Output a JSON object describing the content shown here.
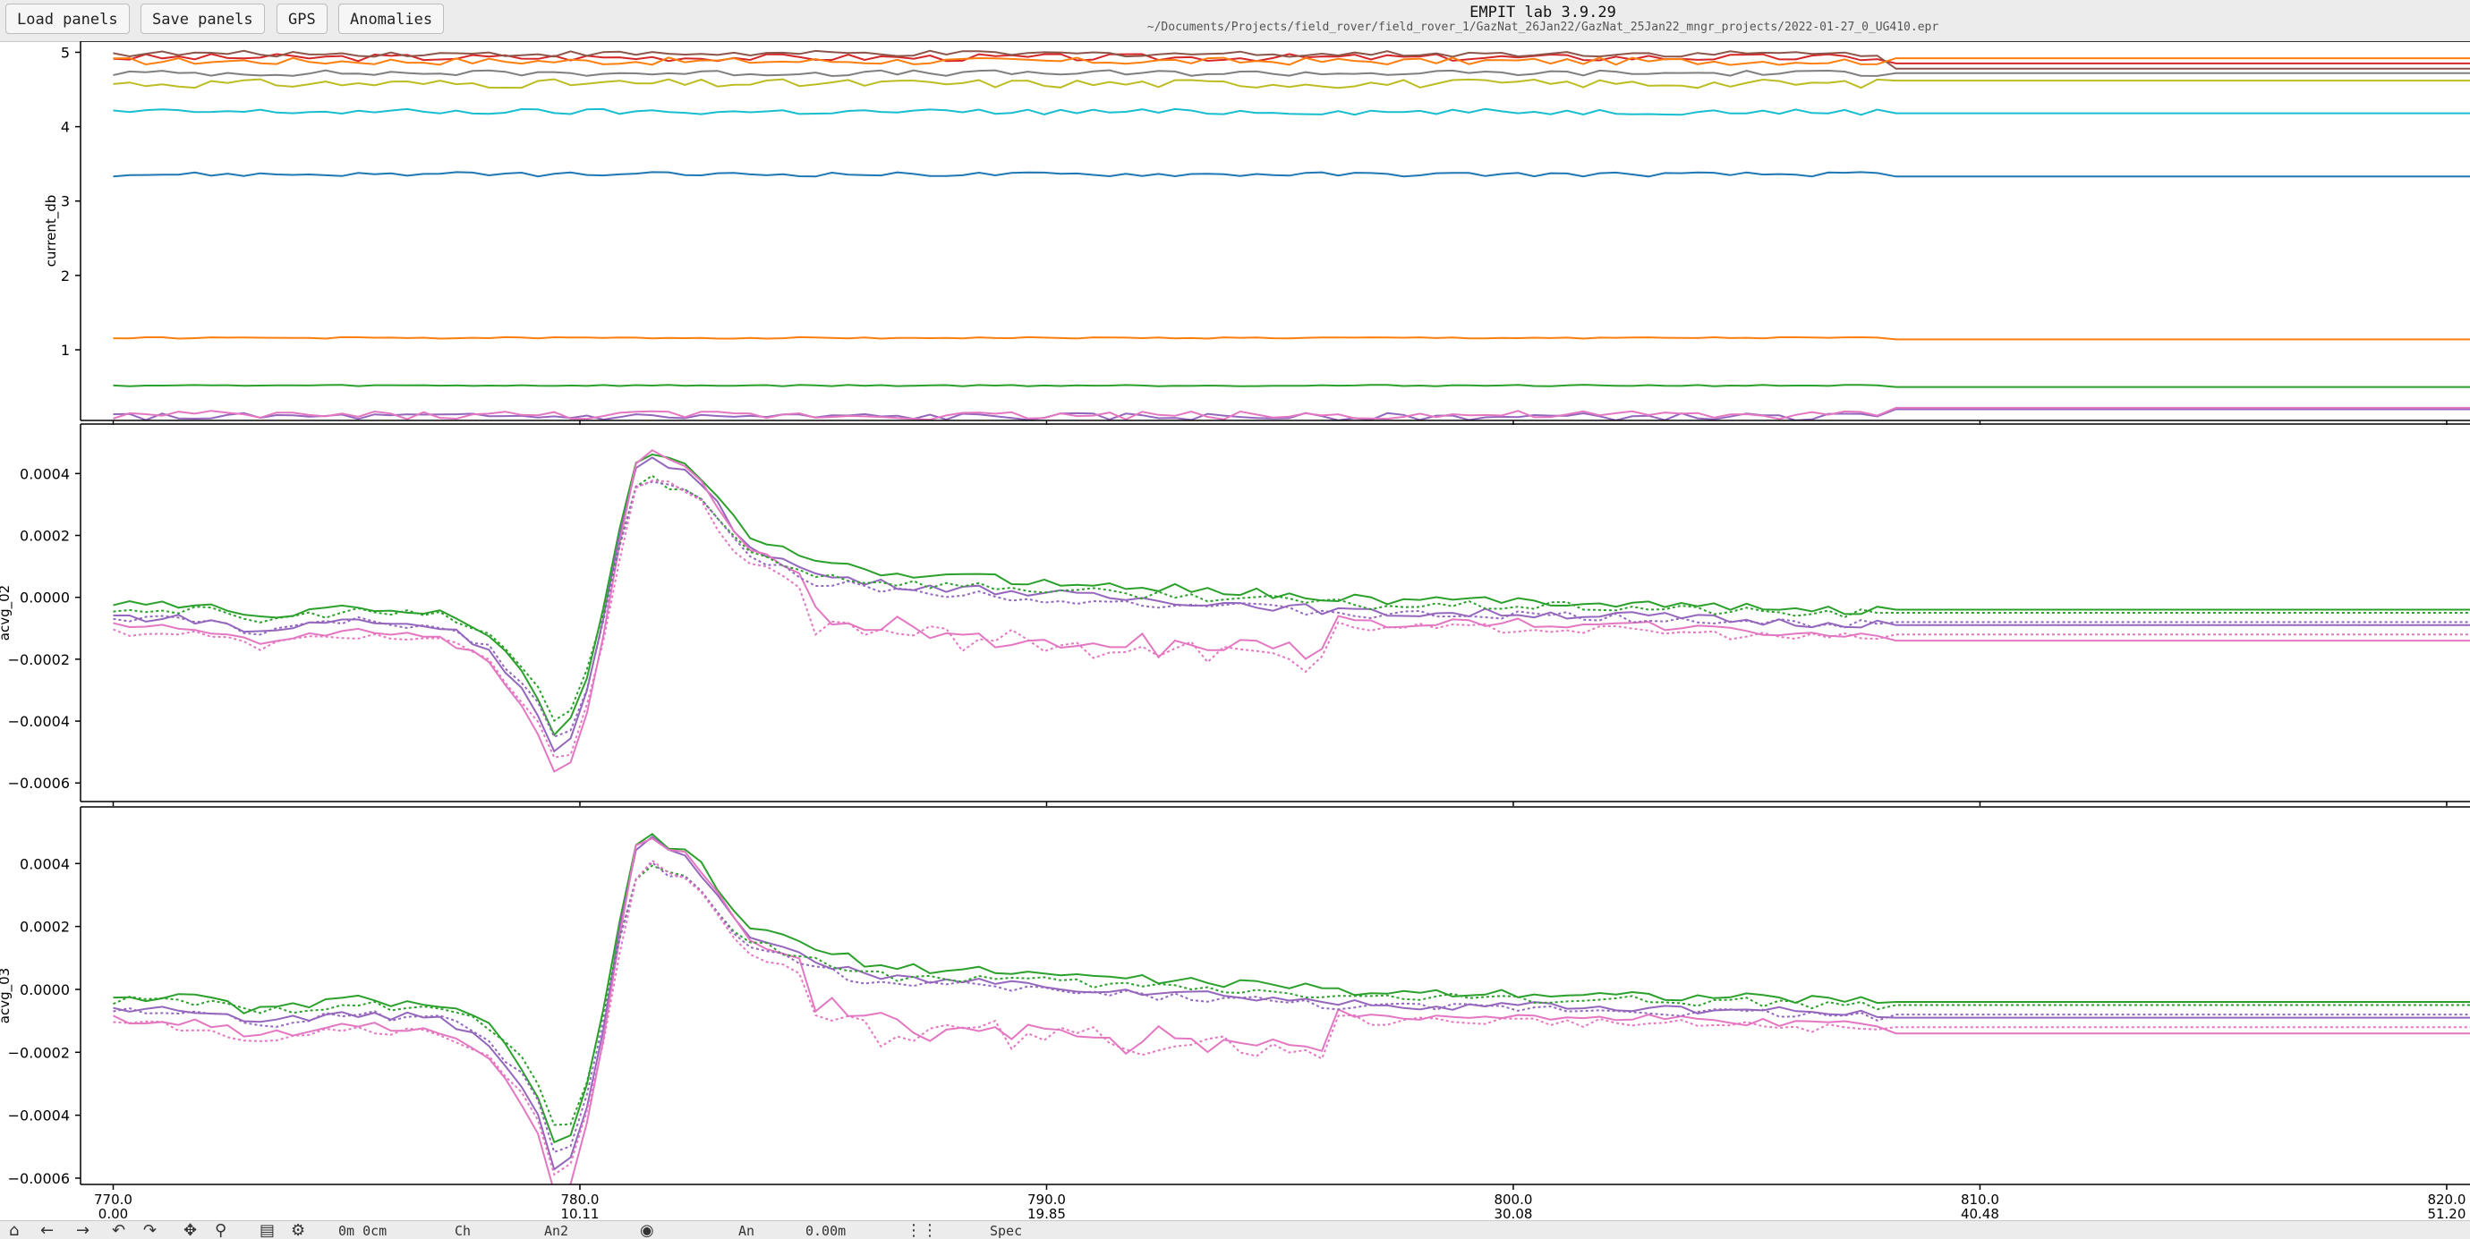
{
  "window": {
    "title": "EMPIT lab 3.9.29",
    "path": "~/Documents/Projects/field_rover/field_rover_1/GazNat_26Jan22/GazNat_25Jan22_mngr_projects/2022-01-27_0_UG410.epr"
  },
  "toolbar": {
    "load_label": "Load panels",
    "save_label": "Save panels",
    "gps_label": "GPS",
    "anomalies_label": "Anomalies"
  },
  "bottom_toolbar": {
    "status_distance": "0m  0cm",
    "status_ch": "Ch",
    "status_an2": "An2",
    "status_an": "An",
    "status_value": "0.00m",
    "status_spec": "Spec",
    "icons": [
      "home-icon",
      "back-arrow-icon",
      "forward-arrow-icon",
      "pan-icon",
      "zoom-icon",
      "save-icon",
      "settings-icon",
      "camera-icon",
      "grid-icon"
    ]
  },
  "chart_data": [
    {
      "type": "line",
      "ylabel": "current_db",
      "yticks": [
        "1",
        "2",
        "3",
        "4",
        "5"
      ],
      "ylim": [
        0.05,
        5.15
      ],
      "xlim": [
        769.3,
        820.5
      ],
      "series": [
        {
          "color": "#d62728",
          "base": 4.93,
          "noise": 0.05,
          "dash": false,
          "tail": 4.85
        },
        {
          "color": "#8c564b",
          "base": 4.98,
          "noise": 0.04,
          "dash": false,
          "tail": 4.78
        },
        {
          "color": "#ff7f0e",
          "base": 4.88,
          "noise": 0.05,
          "dash": false,
          "tail": 4.92
        },
        {
          "color": "#7f7f7f",
          "base": 4.72,
          "noise": 0.04,
          "dash": false,
          "tail": 4.72
        },
        {
          "color": "#bcbd22",
          "base": 4.58,
          "noise": 0.06,
          "dash": false,
          "tail": 4.62
        },
        {
          "color": "#17becf",
          "base": 4.2,
          "noise": 0.04,
          "dash": false,
          "tail": 4.18
        },
        {
          "color": "#1f77b4",
          "base": 3.36,
          "noise": 0.03,
          "dash": false,
          "tail": 3.33
        },
        {
          "color": "#ff7f0e",
          "base": 1.16,
          "noise": 0.01,
          "dash": false,
          "tail": 1.14
        },
        {
          "color": "#2ca02c",
          "base": 0.52,
          "noise": 0.01,
          "dash": false,
          "tail": 0.5
        },
        {
          "color": "#9467bd",
          "base": 0.1,
          "noise": 0.05,
          "dash": false,
          "tail": 0.2
        },
        {
          "color": "#e377c2",
          "base": 0.12,
          "noise": 0.06,
          "dash": false,
          "tail": 0.22
        }
      ]
    },
    {
      "type": "line",
      "ylabel": "acvg_02",
      "yticks": [
        "−0.0006",
        "−0.0004",
        "−0.0002",
        "0.0000",
        "0.0002",
        "0.0004"
      ],
      "yvalues": [
        -0.0006,
        -0.0004,
        -0.0002,
        0.0,
        0.0002,
        0.0004
      ],
      "ylim": [
        -0.00066,
        0.00056
      ],
      "xlim": [
        769.3,
        820.5
      ],
      "profile": [
        [
          770,
          -3e-05
        ],
        [
          772,
          -4e-05
        ],
        [
          773,
          -8e-05
        ],
        [
          775,
          -4e-05
        ],
        [
          777,
          -6e-05
        ],
        [
          778,
          -0.00012
        ],
        [
          779,
          -0.0003
        ],
        [
          779.6,
          -0.0005
        ],
        [
          780.3,
          -0.0002
        ],
        [
          780.9,
          0.00025
        ],
        [
          781.3,
          0.00048
        ],
        [
          782.5,
          0.0004
        ],
        [
          783.5,
          0.0002
        ],
        [
          785,
          0.0001
        ],
        [
          786.5,
          7e-05
        ],
        [
          789,
          5e-05
        ],
        [
          790,
          4e-05
        ],
        [
          791,
          3e-05
        ],
        [
          794,
          1e-05
        ],
        [
          797,
          -2e-05
        ],
        [
          800,
          -2e-05
        ],
        [
          803,
          -3e-05
        ],
        [
          806,
          -5e-05
        ],
        [
          808,
          -5e-05
        ],
        [
          820.5,
          -5e-05
        ]
      ],
      "series": [
        {
          "color": "#2ca02c",
          "scale": 1.0,
          "offset": 1e-05,
          "dash": false,
          "tail": -4e-05
        },
        {
          "color": "#9467bd",
          "scale": 1.05,
          "offset": -3e-05,
          "dash": false,
          "tail": -9e-05
        },
        {
          "color": "#e377c2",
          "scale": 1.15,
          "offset": -6e-05,
          "dash": false,
          "tail": -0.00014
        },
        {
          "color": "#2ca02c",
          "scale": 0.85,
          "offset": -1e-05,
          "dash": true,
          "tail": -5e-05
        },
        {
          "color": "#9467bd",
          "scale": 0.92,
          "offset": -4e-05,
          "dash": true,
          "tail": -8e-05
        },
        {
          "color": "#e377c2",
          "scale": 1.0,
          "offset": -8e-05,
          "dash": true,
          "tail": -0.00012
        }
      ]
    },
    {
      "type": "line",
      "ylabel": "acvg_03",
      "yticks": [
        "−0.0006",
        "−0.0004",
        "−0.0002",
        "0.0000",
        "0.0002",
        "0.0004"
      ],
      "yvalues": [
        -0.0006,
        -0.0004,
        -0.0002,
        0.0,
        0.0002,
        0.0004
      ],
      "ylim": [
        -0.00062,
        0.00058
      ],
      "xlim": [
        769.3,
        820.5
      ],
      "xticks": [
        770.0,
        780.0,
        790.0,
        800.0,
        810.0,
        820.0
      ],
      "xtick_labels": [
        "770.0",
        "780.0",
        "790.0",
        "800.0",
        "810.0",
        "820.0"
      ],
      "xtick_sublabels": [
        "0.00",
        "10.11",
        "19.85",
        "30.08",
        "40.48",
        "51.20"
      ],
      "profile": [
        [
          770,
          -3e-05
        ],
        [
          772,
          -4e-05
        ],
        [
          773,
          -8e-05
        ],
        [
          775,
          -4e-05
        ],
        [
          777,
          -6e-05
        ],
        [
          778,
          -0.00012
        ],
        [
          779,
          -0.0003
        ],
        [
          779.6,
          -0.00058
        ],
        [
          780.3,
          -0.00025
        ],
        [
          780.9,
          0.00025
        ],
        [
          781.3,
          0.0005
        ],
        [
          782.5,
          0.0004
        ],
        [
          783.5,
          0.0002
        ],
        [
          785,
          0.00012
        ],
        [
          786.5,
          6e-05
        ],
        [
          789,
          5e-05
        ],
        [
          790,
          4e-05
        ],
        [
          791,
          3e-05
        ],
        [
          794,
          1e-05
        ],
        [
          797,
          -2e-05
        ],
        [
          800,
          -2e-05
        ],
        [
          803,
          -3e-05
        ],
        [
          806,
          -4e-05
        ],
        [
          808,
          -5e-05
        ],
        [
          820.5,
          -5e-05
        ]
      ],
      "series": [
        {
          "color": "#2ca02c",
          "scale": 1.0,
          "offset": 1e-05,
          "dash": false,
          "tail": -4e-05
        },
        {
          "color": "#9467bd",
          "scale": 1.05,
          "offset": -3e-05,
          "dash": false,
          "tail": -9e-05
        },
        {
          "color": "#e377c2",
          "scale": 1.15,
          "offset": -6e-05,
          "dash": false,
          "tail": -0.00014
        },
        {
          "color": "#2ca02c",
          "scale": 0.85,
          "offset": -1e-05,
          "dash": true,
          "tail": -5e-05
        },
        {
          "color": "#9467bd",
          "scale": 0.92,
          "offset": -4e-05,
          "dash": true,
          "tail": -8e-05
        },
        {
          "color": "#e377c2",
          "scale": 1.0,
          "offset": -8e-05,
          "dash": true,
          "tail": -0.00012
        }
      ]
    }
  ]
}
